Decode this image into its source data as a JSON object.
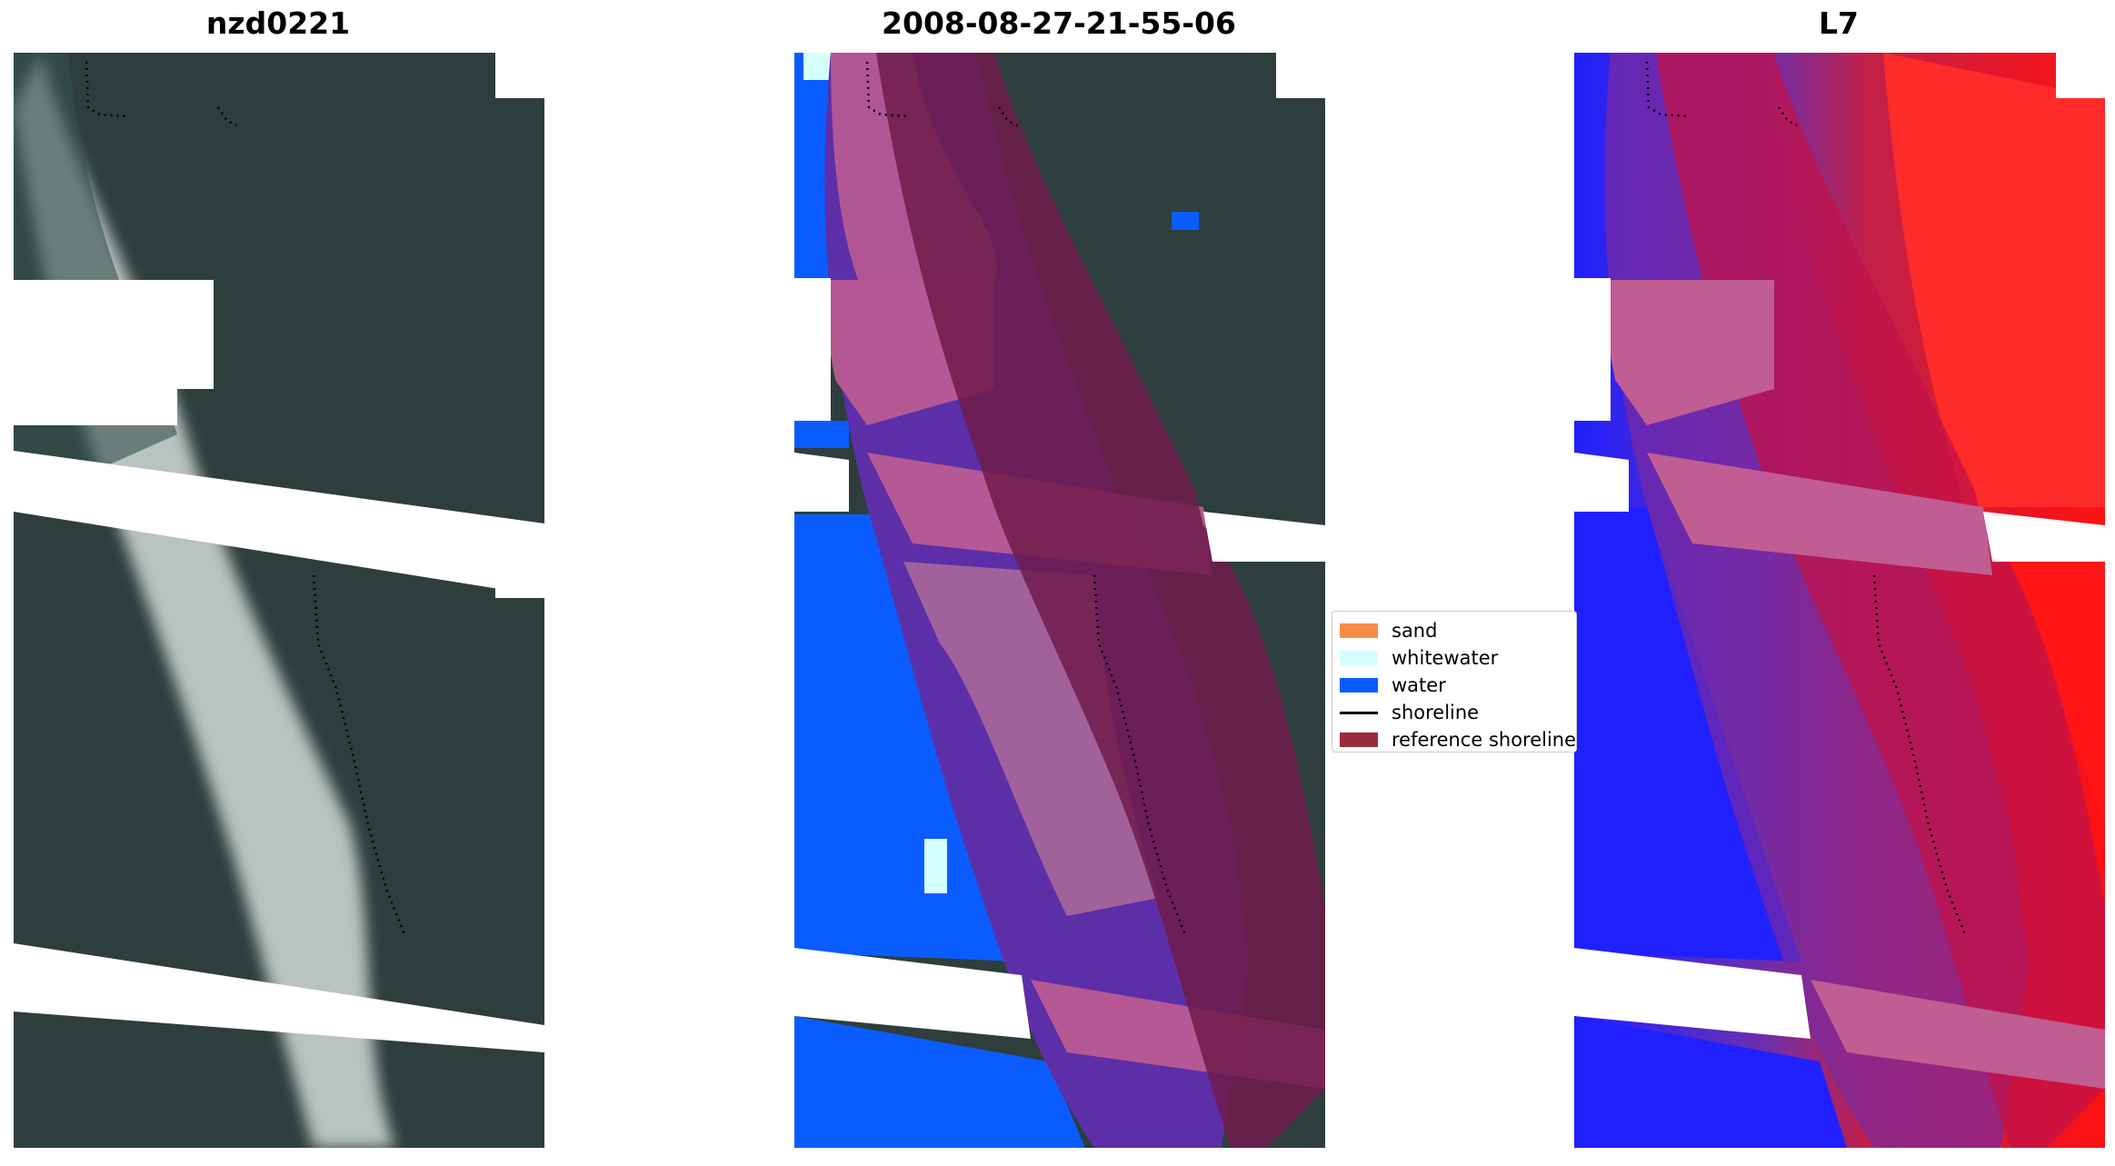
{
  "panels": [
    {
      "title": "nzd0221"
    },
    {
      "title": "2008-08-27-21-55-06"
    },
    {
      "title": "L7"
    }
  ],
  "legend": {
    "items": [
      {
        "label": "sand",
        "color": "#f58c45"
      },
      {
        "label": "whitewater",
        "color": "#d4ffff"
      },
      {
        "label": "water",
        "color": "#0a5cff"
      },
      {
        "label": "shoreline",
        "color": "#000000"
      },
      {
        "label": "reference shoreline",
        "color": "#9a2d3a"
      }
    ]
  }
}
